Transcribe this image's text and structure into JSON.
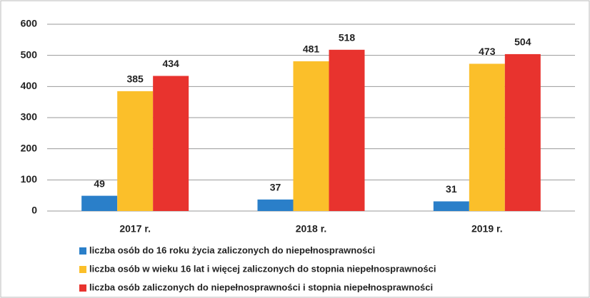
{
  "chart_data": {
    "type": "bar",
    "categories": [
      "2017 r.",
      "2018 r.",
      "2019 r."
    ],
    "series": [
      {
        "name": "liczba osób do 16 roku życia zaliczonych do niepełnosprawności",
        "color": "#2a7fc9",
        "values": [
          49,
          37,
          31
        ]
      },
      {
        "name": "liczba osób w wieku 16 lat i więcej zaliczonych do stopnia niepełnosprawności",
        "color": "#fbbf2a",
        "values": [
          385,
          481,
          473
        ]
      },
      {
        "name": "liczba osób zaliczonych do niepełnosprawności i stopnia niepełnosprawności",
        "color": "#e8332e",
        "values": [
          434,
          518,
          504
        ]
      }
    ],
    "ylim": [
      0,
      600
    ],
    "yticks": [
      0,
      100,
      200,
      300,
      400,
      500,
      600
    ],
    "grid": true,
    "legend": "bottom"
  }
}
